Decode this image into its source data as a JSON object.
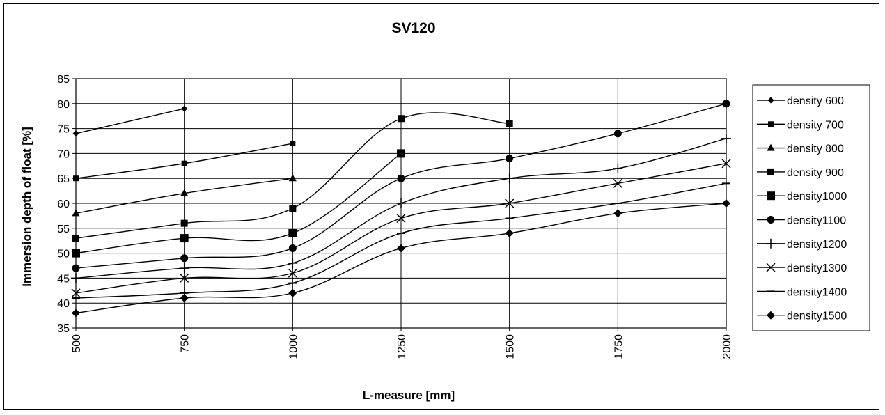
{
  "chart_data": {
    "type": "line",
    "title": "SV120",
    "xlabel": "L-measure [mm]",
    "ylabel": "Immersion depth of float [%]",
    "x": [
      500,
      750,
      1000,
      1250,
      1500,
      1750,
      2000
    ],
    "ylim": [
      35,
      85
    ],
    "yticks": [
      35,
      40,
      45,
      50,
      55,
      60,
      65,
      70,
      75,
      80,
      85
    ],
    "grid": "vertical and horizontal",
    "legend_position": "right",
    "line_color": "#000000",
    "series": [
      {
        "name": "density 600",
        "marker": "diamond-small",
        "points": [
          [
            500,
            74
          ],
          [
            750,
            79
          ]
        ]
      },
      {
        "name": "density 700",
        "marker": "square-small",
        "points": [
          [
            500,
            65
          ],
          [
            750,
            68
          ],
          [
            1000,
            72
          ]
        ]
      },
      {
        "name": "density 800",
        "marker": "triangle",
        "points": [
          [
            500,
            58
          ],
          [
            750,
            62
          ],
          [
            1000,
            65
          ]
        ]
      },
      {
        "name": "density 900",
        "marker": "square",
        "points": [
          [
            500,
            53
          ],
          [
            750,
            56
          ],
          [
            1000,
            59
          ],
          [
            1250,
            77
          ],
          [
            1500,
            76
          ]
        ]
      },
      {
        "name": "density1000",
        "marker": "square-large",
        "points": [
          [
            500,
            50
          ],
          [
            750,
            53
          ],
          [
            1000,
            54
          ],
          [
            1250,
            70
          ]
        ]
      },
      {
        "name": "density1100",
        "marker": "circle",
        "points": [
          [
            500,
            47
          ],
          [
            750,
            49
          ],
          [
            1000,
            51
          ],
          [
            1250,
            65
          ],
          [
            1500,
            69
          ],
          [
            1750,
            74
          ],
          [
            2000,
            80
          ]
        ]
      },
      {
        "name": "density1200",
        "marker": "plus",
        "points": [
          [
            500,
            45
          ],
          [
            750,
            47
          ],
          [
            1000,
            48
          ],
          [
            1250,
            60
          ],
          [
            1500,
            65
          ],
          [
            1750,
            67
          ],
          [
            2000,
            73
          ]
        ]
      },
      {
        "name": "density1300",
        "marker": "x",
        "points": [
          [
            500,
            42
          ],
          [
            750,
            45
          ],
          [
            1000,
            46
          ],
          [
            1250,
            57
          ],
          [
            1500,
            60
          ],
          [
            1750,
            64
          ],
          [
            2000,
            68
          ]
        ]
      },
      {
        "name": "density1400",
        "marker": "dash",
        "points": [
          [
            500,
            41
          ],
          [
            750,
            42
          ],
          [
            1000,
            44
          ],
          [
            1250,
            54
          ],
          [
            1500,
            57
          ],
          [
            1750,
            60
          ],
          [
            2000,
            64
          ]
        ]
      },
      {
        "name": "density1500",
        "marker": "diamond",
        "points": [
          [
            500,
            38
          ],
          [
            750,
            41
          ],
          [
            1000,
            42
          ],
          [
            1250,
            51
          ],
          [
            1500,
            54
          ],
          [
            1750,
            58
          ],
          [
            2000,
            60
          ]
        ]
      }
    ]
  }
}
